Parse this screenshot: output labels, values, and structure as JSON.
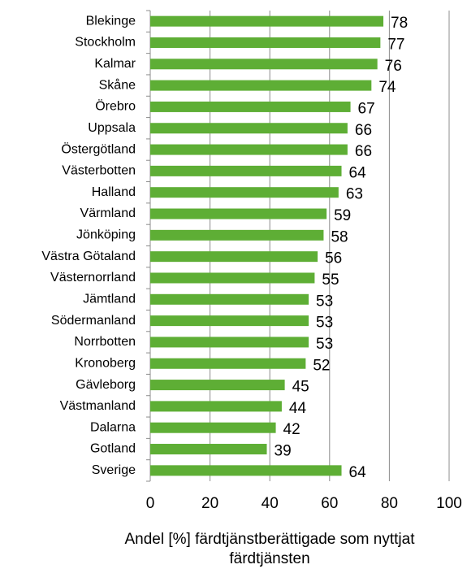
{
  "chart_data": {
    "type": "bar",
    "orientation": "horizontal",
    "categories": [
      "Blekinge",
      "Stockholm",
      "Kalmar",
      "Skåne",
      "Örebro",
      "Uppsala",
      "Östergötland",
      "Västerbotten",
      "Halland",
      "Värmland",
      "Jönköping",
      "Västra Götaland",
      "Västernorrland",
      "Jämtland",
      "Södermanland",
      "Norrbotten",
      "Kronoberg",
      "Gävleborg",
      "Västmanland",
      "Dalarna",
      "Gotland",
      "Sverige"
    ],
    "values": [
      78,
      77,
      76,
      74,
      67,
      66,
      66,
      64,
      63,
      59,
      58,
      56,
      55,
      53,
      53,
      53,
      52,
      45,
      44,
      42,
      39,
      64
    ],
    "color": "#5eae35",
    "xlabel": "Andel [%] färdtjänstberättigade som nyttjat färdtjänsten",
    "xlim": [
      0,
      100
    ],
    "xticks": [
      0,
      20,
      40,
      60,
      80,
      100
    ],
    "grid": true
  }
}
